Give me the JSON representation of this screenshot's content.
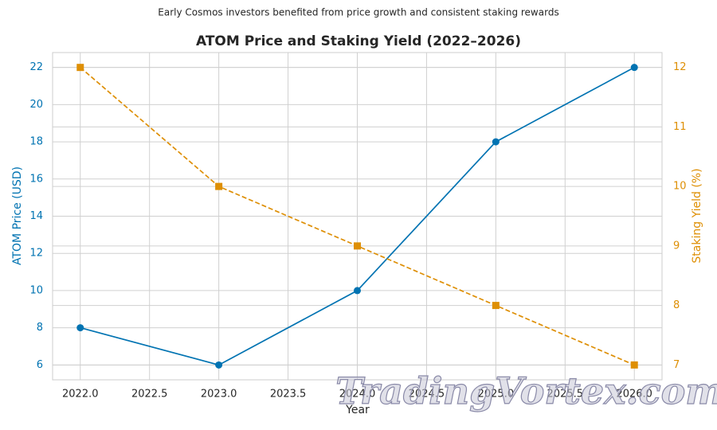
{
  "chart_data": {
    "type": "line",
    "subtitle": "Early Cosmos investors benefited from price growth and consistent staking rewards",
    "title": "ATOM Price and Staking Yield (2022–2026)",
    "x_label": "Year",
    "y_label": "ATOM Price (USD)",
    "y2_label": "Staking Yield (%)",
    "x": [
      2022,
      2023,
      2024,
      2025,
      2026
    ],
    "xlim": [
      2021.8,
      2026.2
    ],
    "xticks": [
      {
        "value": 2022,
        "label": "2022.0"
      },
      2022.5,
      {
        "value": 2023,
        "label": "2023.0"
      },
      2023.5,
      {
        "value": 2024,
        "label": "2024.0"
      },
      2024.5,
      {
        "value": 2025,
        "label": "2025.0"
      },
      2025.5,
      {
        "value": 2026,
        "label": "2026.0"
      }
    ],
    "ylim": [
      5.2,
      22.8
    ],
    "yticks": [
      6,
      8,
      10,
      12,
      14,
      16,
      18,
      20,
      22
    ],
    "y2lim": [
      6.75,
      12.25
    ],
    "y2ticks": [
      7,
      8,
      9,
      10,
      11,
      12
    ],
    "grid": true,
    "series": [
      {
        "name": "ATOM Price (USD)",
        "color": "#0173b2",
        "values": [
          8,
          6,
          10,
          18,
          22
        ],
        "linestyle": "solid",
        "marker": "circle"
      },
      {
        "name": "Staking Yield (%)",
        "color": "#de8f05",
        "values": [
          12,
          10,
          9,
          8,
          7
        ],
        "axis": "y2",
        "linestyle": "dashed",
        "marker": "square"
      }
    ],
    "watermark": "TradingVortex.com"
  }
}
